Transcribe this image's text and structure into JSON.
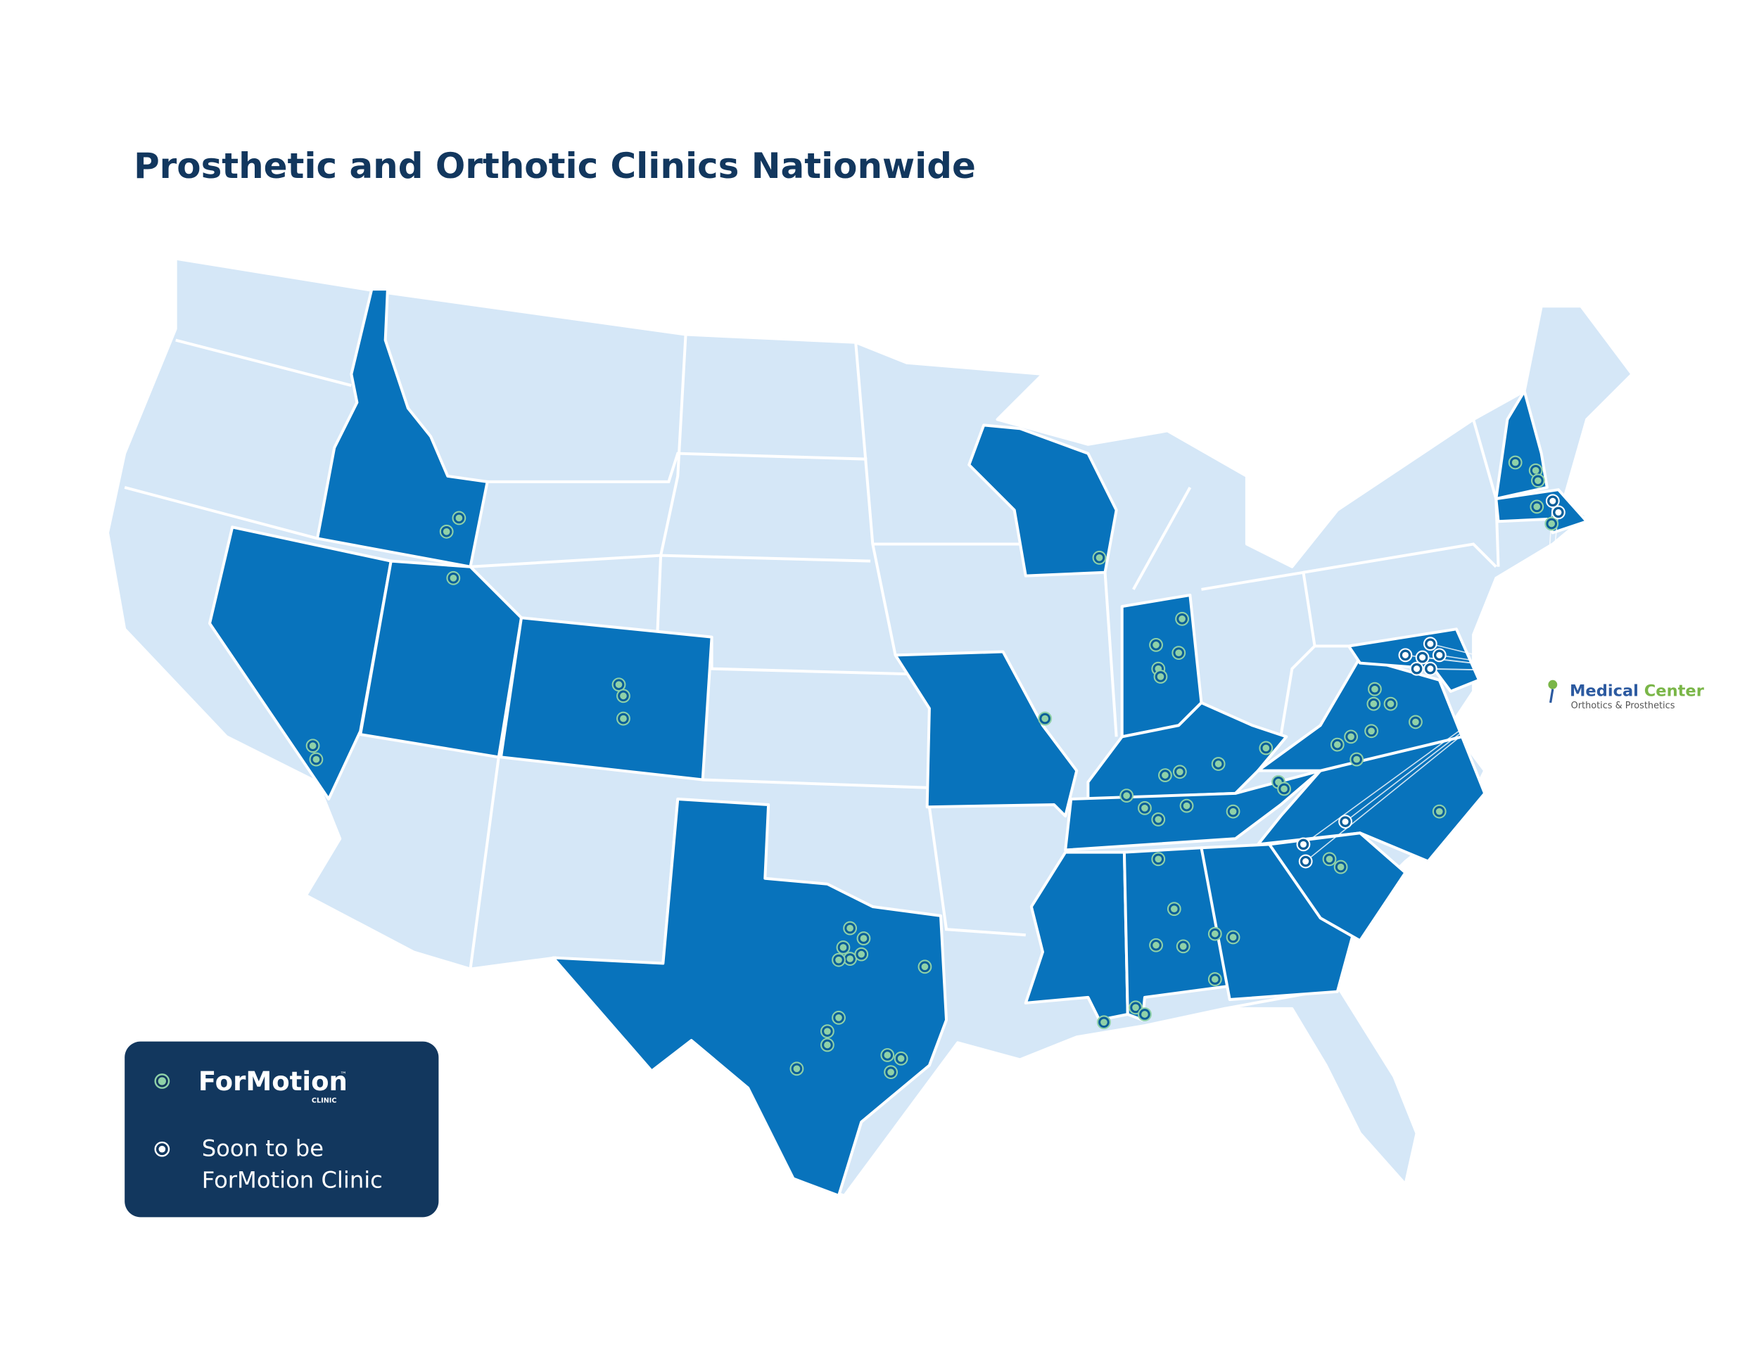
{
  "title": "Prosthetic and Orthotic Clinics Nationwide",
  "legend": {
    "items": [
      {
        "logo": "ForMotion",
        "logo_trademark": "™",
        "logo_sub": "CLINIC"
      },
      {
        "label_lines": [
          "Soon to be",
          "ForMotion Clinic"
        ]
      }
    ]
  },
  "partner": {
    "name_part1": "Medical",
    "name_part2": "Center",
    "tagline": "Orthotics & Prosthetics"
  }
}
